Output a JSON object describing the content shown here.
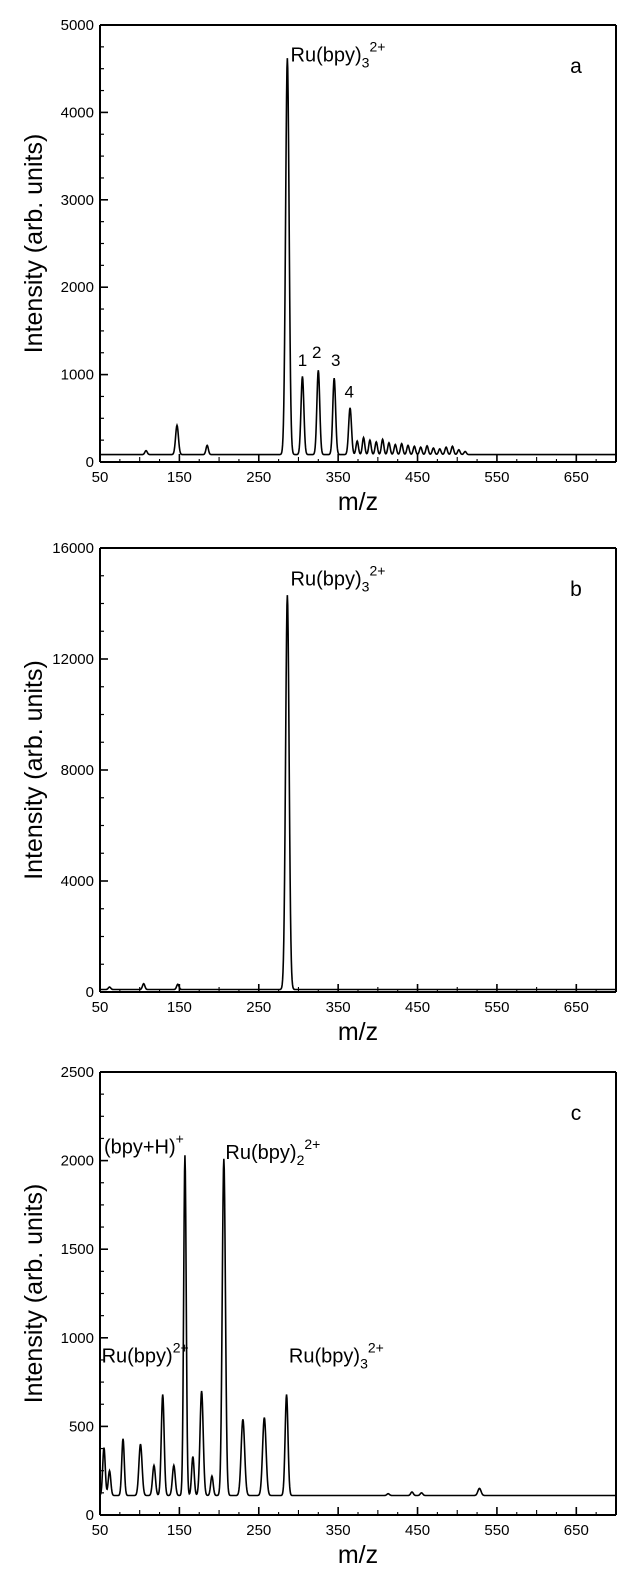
{
  "figure": {
    "description_free": true
  },
  "chart_data": [
    {
      "type": "line",
      "panel_label": "a",
      "xlabel": "m/z",
      "ylabel": "Intensity (arb. units)",
      "xlim": [
        50,
        700
      ],
      "ylim": [
        0,
        5000
      ],
      "xticks": [
        50,
        150,
        250,
        350,
        450,
        550,
        650
      ],
      "yticks": [
        0,
        1000,
        2000,
        3000,
        4000,
        5000
      ],
      "grid": false,
      "baseline": 85,
      "peaks": [
        {
          "x": 108,
          "y": 130,
          "w": 1.5
        },
        {
          "x": 147,
          "y": 420,
          "w": 1.8
        },
        {
          "x": 185,
          "y": 190,
          "w": 1.5
        },
        {
          "x": 286,
          "y": 4620,
          "w": 2.2
        },
        {
          "x": 305,
          "y": 980,
          "w": 1.8
        },
        {
          "x": 325,
          "y": 1050,
          "w": 1.8
        },
        {
          "x": 345,
          "y": 960,
          "w": 1.8
        },
        {
          "x": 365,
          "y": 620,
          "w": 1.8
        },
        {
          "x": 374,
          "y": 240,
          "w": 1.5
        },
        {
          "x": 382,
          "y": 280,
          "w": 1.5
        },
        {
          "x": 390,
          "y": 250,
          "w": 1.5
        },
        {
          "x": 398,
          "y": 230,
          "w": 1.5
        },
        {
          "x": 406,
          "y": 260,
          "w": 1.5
        },
        {
          "x": 414,
          "y": 220,
          "w": 1.5
        },
        {
          "x": 422,
          "y": 200,
          "w": 1.5
        },
        {
          "x": 430,
          "y": 210,
          "w": 1.5
        },
        {
          "x": 438,
          "y": 190,
          "w": 1.5
        },
        {
          "x": 446,
          "y": 180,
          "w": 1.5
        },
        {
          "x": 454,
          "y": 170,
          "w": 1.5
        },
        {
          "x": 462,
          "y": 185,
          "w": 1.5
        },
        {
          "x": 470,
          "y": 160,
          "w": 1.5
        },
        {
          "x": 478,
          "y": 150,
          "w": 1.5
        },
        {
          "x": 486,
          "y": 170,
          "w": 1.5
        },
        {
          "x": 494,
          "y": 180,
          "w": 1.5
        },
        {
          "x": 502,
          "y": 140,
          "w": 1.5
        },
        {
          "x": 510,
          "y": 120,
          "w": 1.5
        }
      ],
      "annotations": [
        {
          "text": "Ru(bpy)",
          "sub": "3",
          "sup": "2+",
          "x": 290,
          "y": 4580
        },
        {
          "text": "1",
          "x": 305,
          "y": 1100
        },
        {
          "text": "2",
          "x": 323,
          "y": 1190
        },
        {
          "text": "3",
          "x": 347,
          "y": 1100
        },
        {
          "text": "4",
          "x": 364,
          "y": 740
        }
      ]
    },
    {
      "type": "line",
      "panel_label": "b",
      "xlabel": "m/z",
      "ylabel": "Intensity (arb. units)",
      "xlim": [
        50,
        700
      ],
      "ylim": [
        0,
        16000
      ],
      "xticks": [
        50,
        150,
        250,
        350,
        450,
        550,
        650
      ],
      "yticks": [
        0,
        4000,
        8000,
        12000,
        16000
      ],
      "grid": false,
      "baseline": 90,
      "peaks": [
        {
          "x": 62,
          "y": 180,
          "w": 1.5
        },
        {
          "x": 105,
          "y": 300,
          "w": 1.5
        },
        {
          "x": 148,
          "y": 280,
          "w": 1.5
        },
        {
          "x": 286,
          "y": 14300,
          "w": 2.2
        }
      ],
      "annotations": [
        {
          "text": "Ru(bpy)",
          "sub": "3",
          "sup": "2+",
          "x": 290,
          "y": 14650
        }
      ]
    },
    {
      "type": "line",
      "panel_label": "c",
      "xlabel": "m/z",
      "ylabel": "Intensity (arb. units)",
      "xlim": [
        50,
        700
      ],
      "ylim": [
        0,
        2500
      ],
      "xticks": [
        50,
        150,
        250,
        350,
        450,
        550,
        650
      ],
      "yticks": [
        0,
        500,
        1000,
        1500,
        2000,
        2500
      ],
      "grid": false,
      "baseline": 110,
      "peaks": [
        {
          "x": 55,
          "y": 380,
          "w": 1.6
        },
        {
          "x": 62,
          "y": 250,
          "w": 1.6
        },
        {
          "x": 79,
          "y": 430,
          "w": 1.6
        },
        {
          "x": 101,
          "y": 400,
          "w": 2.0
        },
        {
          "x": 118,
          "y": 280,
          "w": 1.8
        },
        {
          "x": 129,
          "y": 680,
          "w": 1.8
        },
        {
          "x": 143,
          "y": 280,
          "w": 1.8
        },
        {
          "x": 157,
          "y": 2030,
          "w": 1.6
        },
        {
          "x": 167,
          "y": 330,
          "w": 1.6
        },
        {
          "x": 178,
          "y": 700,
          "w": 2.0
        },
        {
          "x": 191,
          "y": 220,
          "w": 1.6
        },
        {
          "x": 206,
          "y": 2010,
          "w": 2.0
        },
        {
          "x": 230,
          "y": 540,
          "w": 2.2
        },
        {
          "x": 257,
          "y": 550,
          "w": 2.2
        },
        {
          "x": 285,
          "y": 680,
          "w": 1.8
        },
        {
          "x": 413,
          "y": 120,
          "w": 1.6
        },
        {
          "x": 443,
          "y": 130,
          "w": 1.6
        },
        {
          "x": 455,
          "y": 125,
          "w": 1.6
        },
        {
          "x": 528,
          "y": 150,
          "w": 2.0
        }
      ],
      "annotations": [
        {
          "text": "(bpy+H)",
          "sup": "+",
          "x": 55,
          "y": 2040
        },
        {
          "text": "Ru(bpy)",
          "sub": "2",
          "sup": "2+",
          "x": 208,
          "y": 2010
        },
        {
          "text": "Ru(bpy)",
          "sup": "2+",
          "x": 52,
          "y": 860
        },
        {
          "text": "Ru(bpy)",
          "sub": "3",
          "sup": "2+",
          "x": 288,
          "y": 860
        }
      ]
    }
  ]
}
